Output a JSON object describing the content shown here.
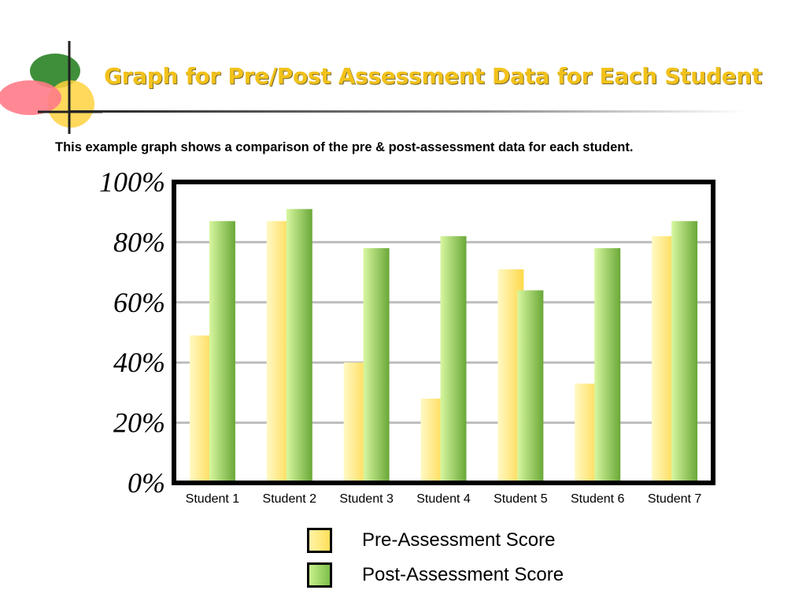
{
  "page": {
    "title": "Graph for Pre/Post Assessment Data for Each Student",
    "subtitle": "This example graph shows a comparison of the pre & post-assessment data for each student."
  },
  "colors": {
    "title": "#f2c21b",
    "pre_light": "#fff6b0",
    "pre_dark": "#ffd84a",
    "post_light": "#d4f59a",
    "post_dark": "#6fae3a",
    "grid": "#bdbdbd"
  },
  "legend": {
    "items": [
      {
        "label": "Pre-Assessment Score",
        "icon": "yellow-square"
      },
      {
        "label": "Post-Assessment Score",
        "icon": "green-square"
      }
    ]
  },
  "chart_data": {
    "type": "bar",
    "categories": [
      "Student 1",
      "Student 2",
      "Student 3",
      "Student 4",
      "Student 5",
      "Student 6",
      "Student 7"
    ],
    "series": [
      {
        "name": "Pre-Assessment Score",
        "values": [
          49,
          87,
          40,
          28,
          71,
          33,
          82
        ]
      },
      {
        "name": "Post-Assessment Score",
        "values": [
          87,
          91,
          78,
          82,
          64,
          78,
          87
        ]
      }
    ],
    "yticks": [
      "0%",
      "20%",
      "40%",
      "60%",
      "80%",
      "100%"
    ],
    "ylim": [
      0,
      100
    ],
    "grid": true,
    "legend_position": "bottom"
  }
}
